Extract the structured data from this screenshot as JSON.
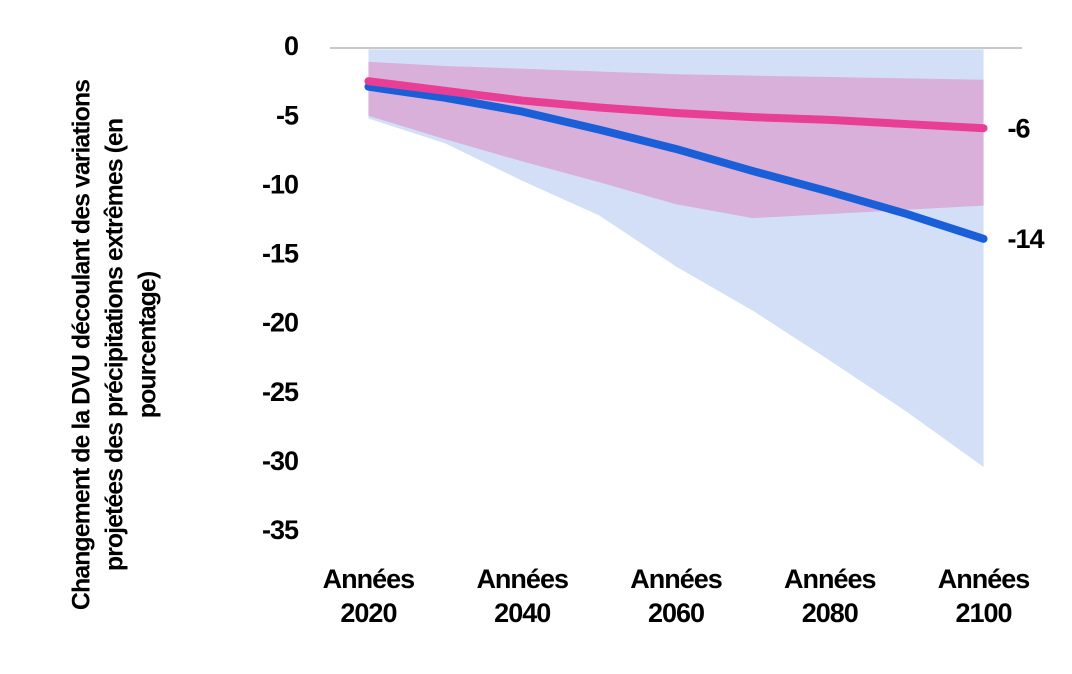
{
  "chart_data": {
    "type": "line",
    "y_label": "Changement de la DVU découlant des variations projetées des précipitations extrêmes (en pourcentage)",
    "x": [
      2020,
      2030,
      2040,
      2050,
      2060,
      2070,
      2080,
      2090,
      2100
    ],
    "xlim": [
      2015,
      2105
    ],
    "xticks": [
      {
        "value": 2020,
        "label": "Années 2020"
      },
      {
        "value": 2040,
        "label": "Années 2040"
      },
      {
        "value": 2060,
        "label": "Années 2060"
      },
      {
        "value": 2080,
        "label": "Années 2080"
      },
      {
        "value": 2100,
        "label": "Années 2100"
      }
    ],
    "ylim": [
      -35,
      0
    ],
    "yticks": [
      0,
      -5,
      -10,
      -15,
      -20,
      -25,
      -30,
      -35
    ],
    "series": [
      {
        "color": "#1a5fd8",
        "values": [
          -2.8,
          -3.6,
          -4.6,
          -5.9,
          -7.3,
          -8.9,
          -10.4,
          -12.0,
          -13.8
        ],
        "value_labels": [
          null,
          null,
          null,
          null,
          null,
          null,
          null,
          null,
          "-14"
        ]
      },
      {
        "color": "#e83e96",
        "values": [
          -2.4,
          -3.1,
          -3.8,
          -4.3,
          -4.7,
          -5.0,
          -5.2,
          -5.5,
          -5.8
        ],
        "value_labels": [
          null,
          null,
          null,
          null,
          null,
          null,
          null,
          null,
          "-6"
        ]
      }
    ],
    "bands": [
      {
        "color": "#8fb0ea",
        "upper": [
          -0.1,
          -0.1,
          -0.1,
          -0.1,
          -0.1,
          -0.1,
          -0.1,
          -0.1,
          -0.1
        ],
        "lower": [
          -5.1,
          -6.9,
          -9.6,
          -12.1,
          -15.8,
          -19.0,
          -22.6,
          -26.3,
          -30.3
        ]
      },
      {
        "color": "#e06ab0",
        "upper": [
          -1.0,
          -1.3,
          -1.5,
          -1.7,
          -1.9,
          -2.0,
          -2.1,
          -2.2,
          -2.3
        ],
        "lower": [
          -4.9,
          -6.6,
          -8.2,
          -9.7,
          -11.3,
          -12.3,
          -12.0,
          -11.7,
          -11.4
        ]
      }
    ]
  }
}
